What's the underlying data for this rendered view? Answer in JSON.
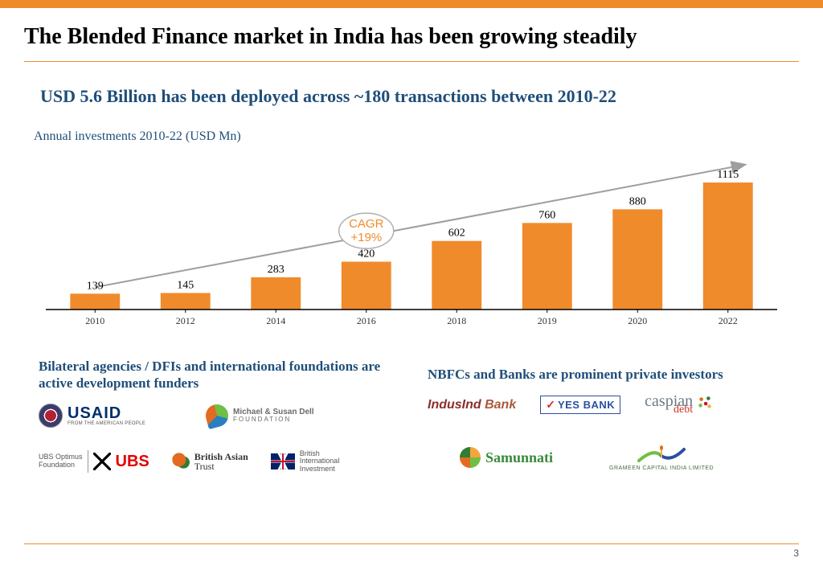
{
  "header": {
    "top_bar_color": "#f08b2c",
    "title": "The Blended Finance market in India has been growing steadily"
  },
  "subtitle": "USD 5.6 Billion has been deployed across ~180 transactions  between 2010-22",
  "chart": {
    "type": "bar",
    "label": "Annual investments 2010-22 (USD Mn)",
    "categories": [
      "2010",
      "2012",
      "2014",
      "2016",
      "2018",
      "2019",
      "2020",
      "2022"
    ],
    "values": [
      139,
      145,
      283,
      420,
      602,
      760,
      880,
      1115
    ],
    "value_max": 1200,
    "bar_color": "#f08b2c",
    "axis_color": "#000000",
    "tick_label_color": "#333333",
    "value_label_color": "#000000",
    "value_label_fontsize": 14,
    "tick_label_fontsize": 12,
    "bar_width_ratio": 0.55,
    "cagr_badge": {
      "line1": "CAGR",
      "line2": "+19%",
      "text_color": "#f08b2c",
      "border_color": "#b0b0b0",
      "fontsize": 15
    },
    "trend_arrow_color": "#9e9e9e"
  },
  "funders": {
    "left_heading": "Bilateral agencies / DFIs and international foundations are active development funders",
    "right_heading": "NBFCs and Banks are prominent private investors",
    "left_logos": {
      "usaid": {
        "main": "USAID",
        "sub": "FROM THE AMERICAN PEOPLE"
      },
      "dell": {
        "line1": "Michael & Susan Dell",
        "line2": "FOUNDATION"
      },
      "ubs": {
        "opt_l1": "UBS Optimus",
        "opt_l2": "Foundation",
        "word": "UBS"
      },
      "bat": {
        "l1": "British Asian",
        "l2": "Trust"
      },
      "bii": {
        "l1": "British",
        "l2": "International",
        "l3": "Investment"
      }
    },
    "right_logos": {
      "indus": {
        "part1": "IndusInd",
        "part2": " Bank"
      },
      "yes": {
        "text": "YES BANK"
      },
      "caspian": {
        "l1": "caspian",
        "l2": "debt"
      },
      "samu": {
        "text": "Samunnati"
      },
      "grameen": {
        "text": "GRAMEEN CAPITAL INDIA LIMITED"
      }
    }
  },
  "footer": {
    "page_number": "3"
  }
}
